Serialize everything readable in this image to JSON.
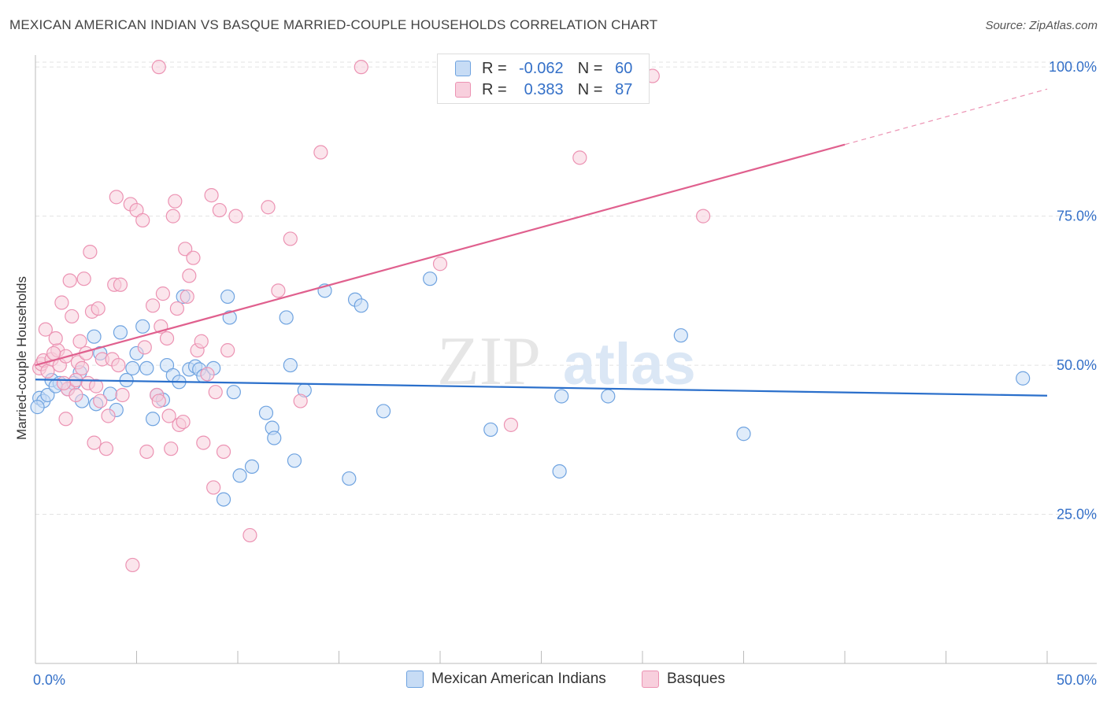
{
  "title": "MEXICAN AMERICAN INDIAN VS BASQUE MARRIED-COUPLE HOUSEHOLDS CORRELATION CHART",
  "source": "Source: ZipAtlas.com",
  "watermark": {
    "part1": "ZIP",
    "part2": "atlas"
  },
  "legend": {
    "row1": {
      "r_label": "R =",
      "r_value": "-0.062",
      "n_label": "N =",
      "n_value": "60"
    },
    "row2": {
      "r_label": "R =",
      "r_value": "0.383",
      "n_label": "N =",
      "n_value": "87"
    }
  },
  "colors": {
    "blue": "#6fa3e0",
    "blue_fill": "#c7dcf5",
    "blue_line": "#2a6fcb",
    "pink": "#ec93b3",
    "pink_fill": "#f8cfdd",
    "pink_line": "#e0608e",
    "tick_label": "#3470c8"
  },
  "chart_data": {
    "type": "scatter",
    "xlabel": "",
    "ylabel": "Married-couple Households",
    "xlim": [
      0,
      50
    ],
    "ylim": [
      0,
      102
    ],
    "x_tick_labels": [
      "0.0%",
      "50.0%"
    ],
    "y_ticks": [
      25,
      50,
      75,
      100
    ],
    "y_tick_labels": [
      "25.0%",
      "50.0%",
      "75.0%",
      "100.0%"
    ],
    "grid": true,
    "series": [
      {
        "name": "Mexican American Indians",
        "color": "#6fa3e0",
        "trend": {
          "x": [
            0,
            50
          ],
          "y": [
            47.6,
            44.9
          ]
        },
        "points": [
          [
            0.2,
            44.5
          ],
          [
            0.4,
            44.0
          ],
          [
            0.6,
            45.0
          ],
          [
            0.8,
            47.5
          ],
          [
            1.2,
            47.0
          ],
          [
            1.6,
            46.0
          ],
          [
            1.9,
            47.0
          ],
          [
            2.2,
            48.8
          ],
          [
            2.3,
            44.0
          ],
          [
            2.9,
            54.8
          ],
          [
            3.0,
            43.5
          ],
          [
            3.2,
            52.0
          ],
          [
            3.7,
            45.2
          ],
          [
            4.0,
            42.5
          ],
          [
            4.2,
            55.5
          ],
          [
            4.5,
            47.5
          ],
          [
            4.8,
            49.5
          ],
          [
            5.0,
            52.0
          ],
          [
            5.3,
            56.5
          ],
          [
            5.5,
            49.5
          ],
          [
            5.8,
            41.0
          ],
          [
            6.0,
            45.0
          ],
          [
            6.3,
            44.2
          ],
          [
            6.5,
            50.0
          ],
          [
            6.8,
            48.3
          ],
          [
            7.1,
            47.2
          ],
          [
            7.3,
            61.5
          ],
          [
            7.6,
            49.3
          ],
          [
            7.9,
            49.8
          ],
          [
            8.1,
            49.3
          ],
          [
            8.3,
            48.2
          ],
          [
            8.8,
            49.5
          ],
          [
            9.3,
            27.5
          ],
          [
            9.5,
            61.5
          ],
          [
            9.6,
            58.0
          ],
          [
            9.8,
            45.5
          ],
          [
            10.1,
            31.5
          ],
          [
            10.7,
            33.0
          ],
          [
            11.4,
            42.0
          ],
          [
            11.7,
            39.5
          ],
          [
            11.8,
            37.8
          ],
          [
            12.4,
            58.0
          ],
          [
            12.6,
            50.0
          ],
          [
            12.8,
            34.0
          ],
          [
            13.3,
            45.8
          ],
          [
            14.3,
            62.5
          ],
          [
            15.5,
            31.0
          ],
          [
            15.8,
            61.0
          ],
          [
            16.1,
            60.0
          ],
          [
            17.2,
            42.3
          ],
          [
            19.5,
            64.5
          ],
          [
            22.5,
            39.2
          ],
          [
            25.9,
            32.2
          ],
          [
            26.0,
            44.8
          ],
          [
            28.3,
            44.8
          ],
          [
            31.9,
            55.0
          ],
          [
            35.0,
            38.5
          ],
          [
            48.8,
            47.8
          ],
          [
            0.1,
            43.0
          ],
          [
            1.0,
            46.5
          ]
        ]
      },
      {
        "name": "Basques",
        "color": "#ec93b3",
        "trend": {
          "x": [
            0,
            40
          ],
          "y": [
            50.0,
            87.0
          ]
        },
        "trend_dashed": {
          "x": [
            40,
            50
          ],
          "y": [
            87.0,
            96.3
          ]
        },
        "points": [
          [
            0.2,
            49.5
          ],
          [
            0.3,
            50.2
          ],
          [
            0.4,
            50.8
          ],
          [
            0.5,
            56.0
          ],
          [
            0.6,
            49.0
          ],
          [
            0.8,
            51.0
          ],
          [
            1.1,
            52.5
          ],
          [
            1.0,
            54.5
          ],
          [
            1.2,
            50.0
          ],
          [
            1.3,
            60.5
          ],
          [
            1.5,
            51.5
          ],
          [
            1.6,
            46.0
          ],
          [
            1.5,
            41.0
          ],
          [
            1.7,
            64.2
          ],
          [
            1.8,
            58.2
          ],
          [
            2.0,
            47.5
          ],
          [
            2.1,
            50.5
          ],
          [
            2.2,
            54.0
          ],
          [
            2.3,
            49.5
          ],
          [
            2.0,
            45.0
          ],
          [
            2.4,
            64.5
          ],
          [
            2.5,
            52.0
          ],
          [
            2.6,
            47.0
          ],
          [
            2.7,
            69.0
          ],
          [
            2.8,
            59.0
          ],
          [
            2.9,
            37.0
          ],
          [
            3.0,
            46.5
          ],
          [
            3.1,
            59.5
          ],
          [
            3.2,
            44.0
          ],
          [
            3.3,
            51.0
          ],
          [
            3.5,
            36.0
          ],
          [
            3.6,
            41.5
          ],
          [
            3.8,
            51.0
          ],
          [
            3.9,
            63.5
          ],
          [
            4.0,
            78.2
          ],
          [
            4.1,
            50.0
          ],
          [
            4.2,
            63.5
          ],
          [
            4.3,
            45.0
          ],
          [
            4.7,
            77.0
          ],
          [
            5.0,
            76.0
          ],
          [
            4.8,
            16.5
          ],
          [
            5.3,
            74.3
          ],
          [
            5.4,
            53.0
          ],
          [
            5.5,
            35.5
          ],
          [
            5.8,
            60.0
          ],
          [
            6.0,
            45.0
          ],
          [
            6.1,
            44.0
          ],
          [
            6.2,
            56.5
          ],
          [
            6.3,
            62.0
          ],
          [
            6.5,
            54.5
          ],
          [
            6.6,
            41.5
          ],
          [
            6.7,
            36.0
          ],
          [
            6.8,
            75.0
          ],
          [
            6.9,
            77.5
          ],
          [
            7.0,
            59.5
          ],
          [
            7.1,
            40.0
          ],
          [
            7.3,
            40.5
          ],
          [
            7.4,
            69.5
          ],
          [
            7.5,
            61.5
          ],
          [
            7.6,
            65.0
          ],
          [
            7.8,
            68.0
          ],
          [
            8.0,
            52.5
          ],
          [
            8.2,
            54.0
          ],
          [
            8.3,
            37.0
          ],
          [
            8.5,
            48.5
          ],
          [
            8.7,
            78.5
          ],
          [
            8.8,
            29.5
          ],
          [
            8.9,
            45.5
          ],
          [
            9.1,
            76.0
          ],
          [
            9.3,
            35.5
          ],
          [
            9.5,
            52.5
          ],
          [
            9.9,
            75.0
          ],
          [
            10.6,
            21.5
          ],
          [
            11.5,
            76.5
          ],
          [
            12.0,
            62.5
          ],
          [
            12.6,
            71.2
          ],
          [
            13.1,
            44.0
          ],
          [
            14.1,
            85.7
          ],
          [
            16.1,
            100.0
          ],
          [
            20.0,
            67.0
          ],
          [
            23.5,
            40.0
          ],
          [
            26.9,
            84.8
          ],
          [
            30.5,
            98.5
          ],
          [
            33.0,
            75.0
          ],
          [
            0.9,
            52.0
          ],
          [
            1.4,
            47.0
          ],
          [
            6.1,
            100.0
          ]
        ]
      }
    ]
  }
}
